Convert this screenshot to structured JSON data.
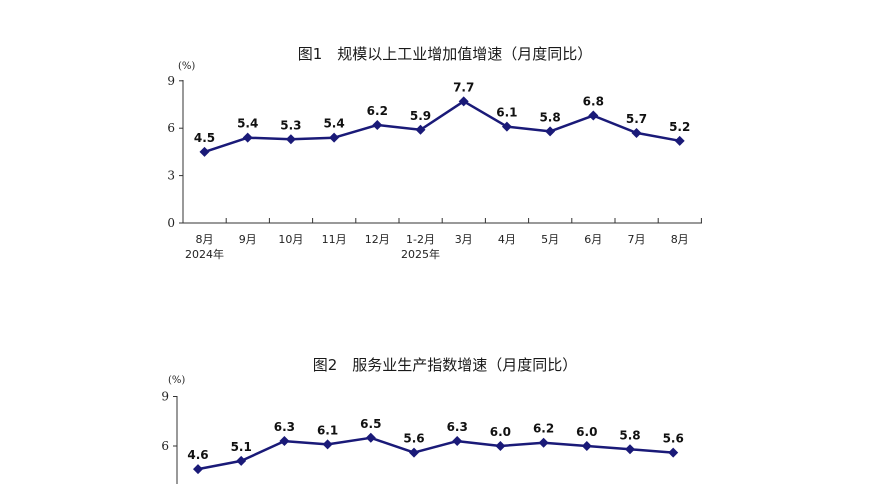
{
  "chart_data": [
    {
      "type": "line",
      "title": "图1　规模以上工业增加值增速（月度同比）",
      "unit": "(%)",
      "categories": [
        "8月",
        "9月",
        "10月",
        "11月",
        "12月",
        "1-2月",
        "3月",
        "4月",
        "5月",
        "6月",
        "7月",
        "8月"
      ],
      "year_labels": [
        {
          "index": 0,
          "text": "2024年"
        },
        {
          "index": 5,
          "text": "2025年"
        }
      ],
      "values": [
        4.5,
        5.4,
        5.3,
        5.4,
        6.2,
        5.9,
        7.7,
        6.1,
        5.8,
        6.8,
        5.7,
        5.2
      ],
      "yticks": [
        0,
        3,
        6,
        9
      ],
      "ylim": [
        0,
        9
      ],
      "line_color": "#1a1a78",
      "grid": false
    },
    {
      "type": "line",
      "title": "图2　服务业生产指数增速（月度同比）",
      "unit": "(%)",
      "values": [
        4.6,
        5.1,
        6.3,
        6.1,
        6.5,
        5.6,
        6.3,
        6.0,
        6.2,
        6.0,
        5.8,
        5.6
      ],
      "yticks": [
        6,
        9
      ],
      "ylim": [
        0,
        9
      ],
      "line_color": "#1a1a78",
      "grid": false
    }
  ]
}
